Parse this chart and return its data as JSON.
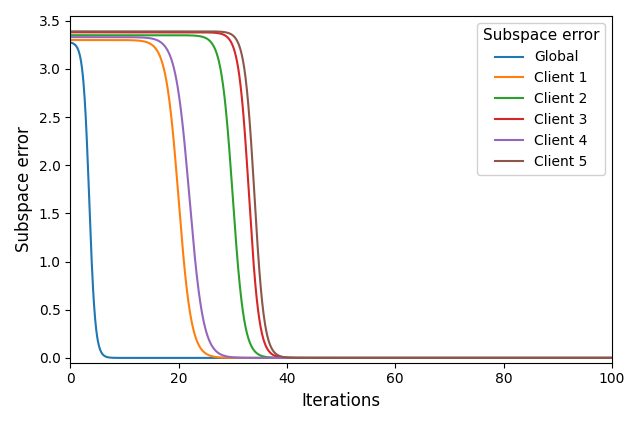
{
  "title": "Subspace error",
  "xlabel": "Iterations",
  "ylabel": "Subspace error",
  "xlim": [
    0,
    100
  ],
  "ylim": [
    -0.05,
    3.55
  ],
  "series": [
    {
      "label": "Global",
      "color": "#1f77b4",
      "y0": 3.28,
      "midpoint": 3.5,
      "steepness": 1.8
    },
    {
      "label": "Client 1",
      "color": "#ff7f0e",
      "y0": 3.3,
      "midpoint": 20,
      "steepness": 0.85
    },
    {
      "label": "Client 2",
      "color": "#2ca02c",
      "y0": 3.35,
      "midpoint": 30,
      "steepness": 0.95
    },
    {
      "label": "Client 3",
      "color": "#d62728",
      "y0": 3.38,
      "midpoint": 33,
      "steepness": 1.05
    },
    {
      "label": "Client 4",
      "color": "#9467bd",
      "y0": 3.33,
      "midpoint": 22,
      "steepness": 0.78
    },
    {
      "label": "Client 5",
      "color": "#8c564b",
      "y0": 3.39,
      "midpoint": 34,
      "steepness": 1.1
    }
  ],
  "legend_title": "Subspace error",
  "legend_loc": "upper right"
}
